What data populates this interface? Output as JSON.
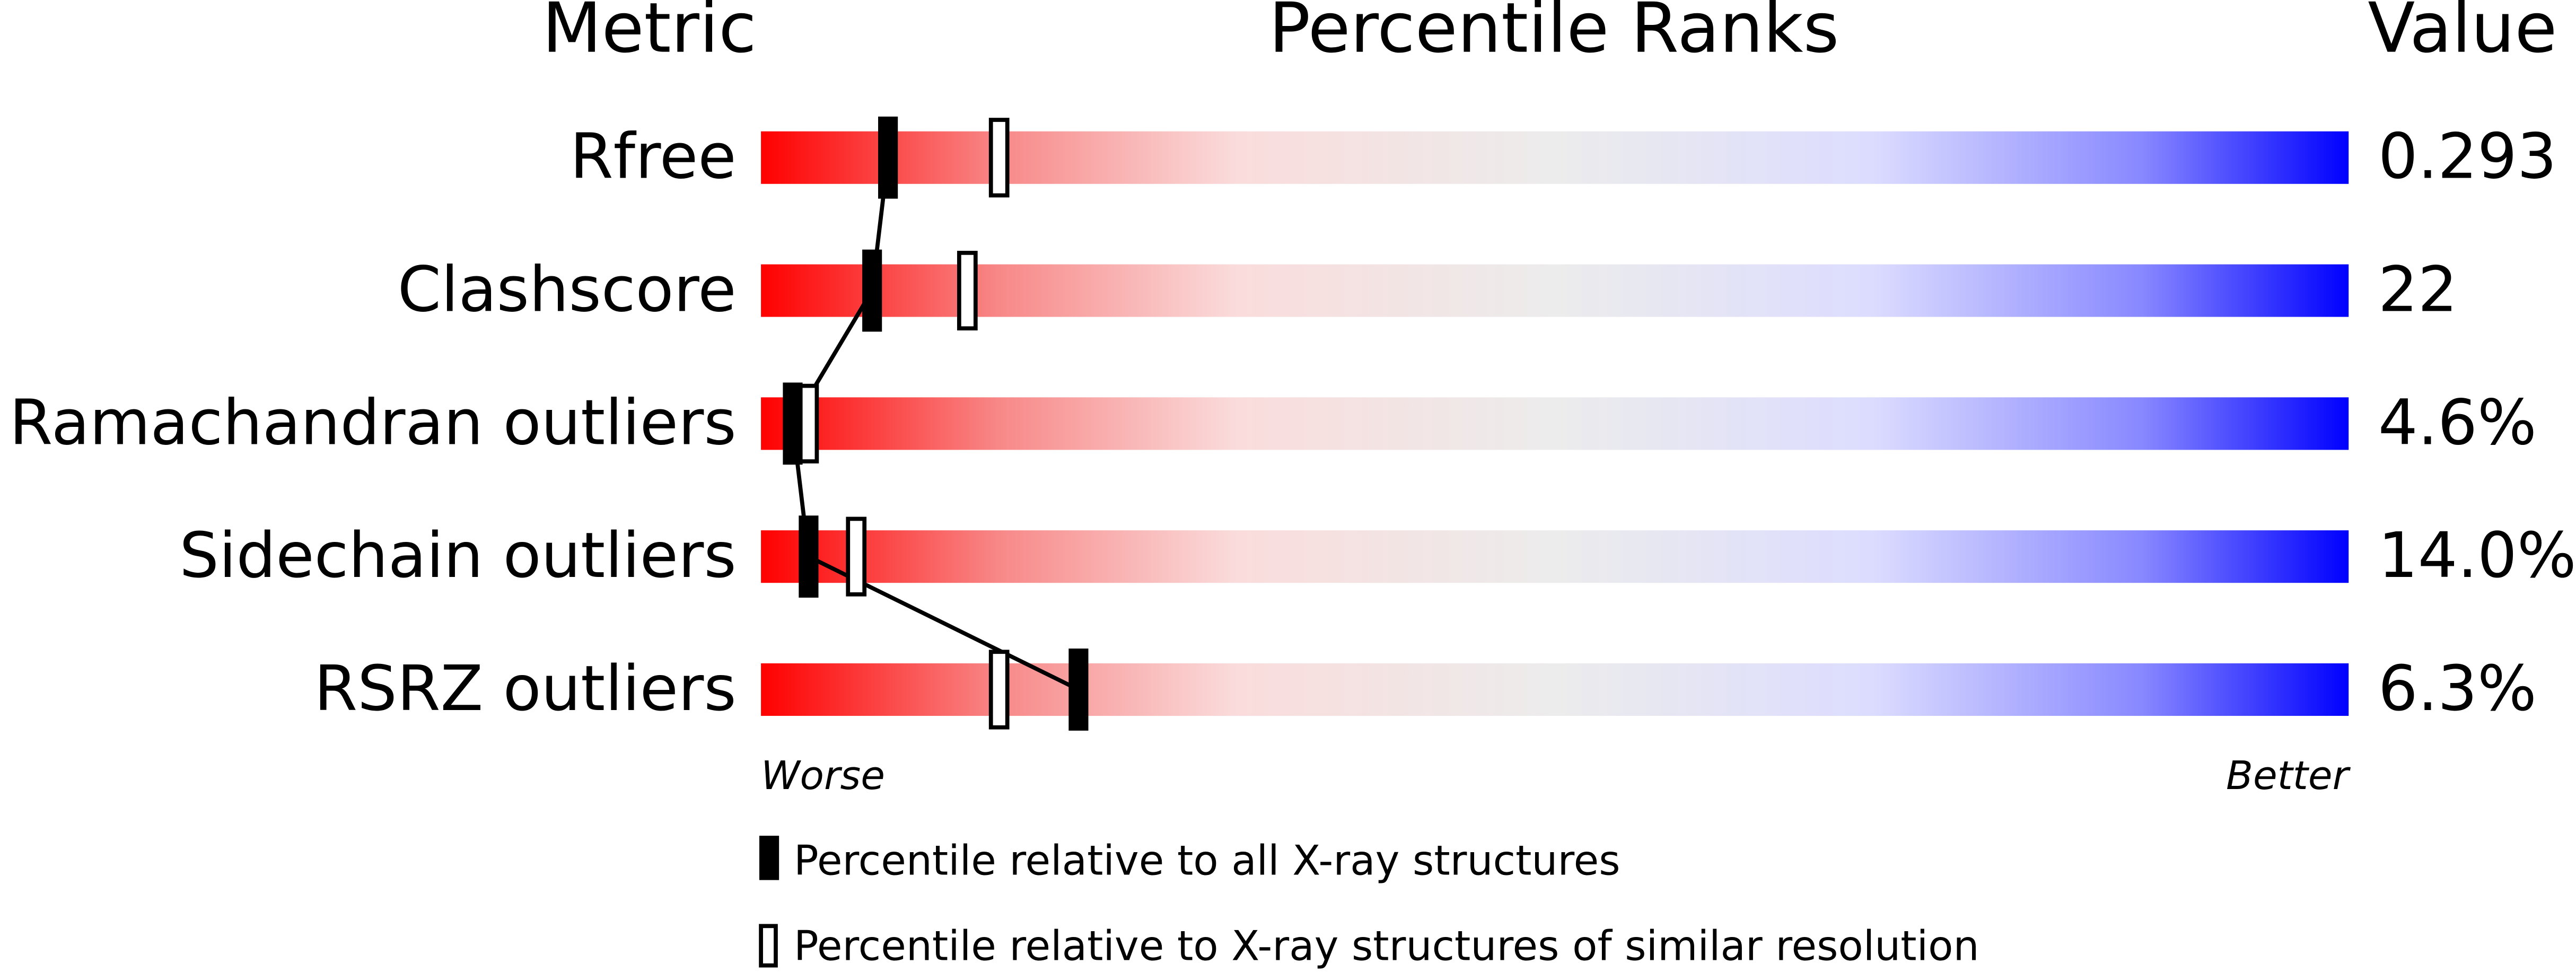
{
  "chart_data": {
    "type": "percentile",
    "metric_header": "Metric",
    "title": "Percentile Ranks",
    "value_header": "Value",
    "categories": [
      "Rfree",
      "Clashscore",
      "Ramachandran outliers",
      "Sidechain outliers",
      "RSRZ outliers"
    ],
    "metric_values": [
      "0.293",
      "22",
      "4.6%",
      "14.0%",
      "6.3%"
    ],
    "series": [
      {
        "name": "Percentile relative to all X-ray structures",
        "color": "#000000",
        "values": [
          8,
          7,
          2,
          3,
          20
        ]
      },
      {
        "name": "Percentile relative to X-ray structures of similar resolution",
        "color": "#000000",
        "values": [
          15,
          13,
          3,
          6,
          15
        ]
      }
    ],
    "xlim": [
      0,
      100
    ],
    "x_min_label": "Worse",
    "x_max_label": "Better"
  }
}
